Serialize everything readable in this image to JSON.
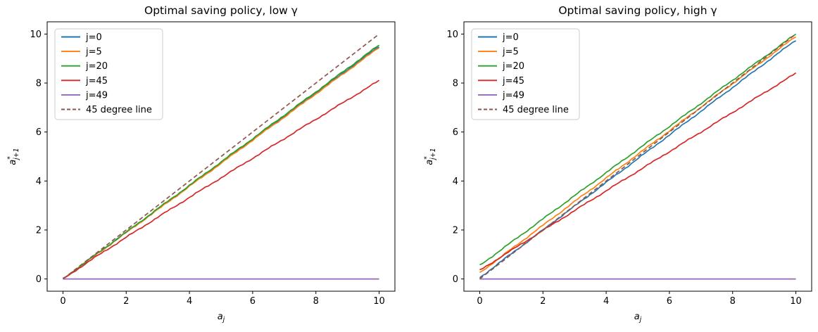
{
  "figure": {
    "background": "#ffffff",
    "axes_color": "#000000",
    "legend_border_color": "#cccccc",
    "legend_background": "#ffffff"
  },
  "chart_data": [
    {
      "type": "line",
      "title": "Optimal saving policy, low γ",
      "xlabel": {
        "base": "a",
        "sub": "j"
      },
      "ylabel": {
        "base": "a",
        "sup": "*",
        "sub": "j+1"
      },
      "xlim": [
        -0.5,
        10.5
      ],
      "ylim": [
        -0.5,
        10.5
      ],
      "xticks": [
        0,
        2,
        4,
        6,
        8,
        10
      ],
      "yticks": [
        0,
        2,
        4,
        6,
        8,
        10
      ],
      "grid": false,
      "legend_position": "upper-left",
      "x": [
        0,
        1,
        2,
        3,
        4,
        5,
        6,
        7,
        8,
        9,
        10
      ],
      "series": [
        {
          "name": "j=0",
          "color": "#1f77b4",
          "style": "solid",
          "jitter": true,
          "values": [
            0,
            0.95,
            1.9,
            2.85,
            3.8,
            4.75,
            5.7,
            6.65,
            7.6,
            8.55,
            9.5
          ]
        },
        {
          "name": "j=5",
          "color": "#ff7f0e",
          "style": "solid",
          "jitter": true,
          "values": [
            0,
            0.94,
            1.89,
            2.83,
            3.78,
            4.72,
            5.67,
            6.61,
            7.56,
            8.5,
            9.45
          ]
        },
        {
          "name": "j=20",
          "color": "#2ca02c",
          "style": "solid",
          "jitter": true,
          "values": [
            0,
            0.96,
            1.91,
            2.87,
            3.82,
            4.78,
            5.73,
            6.69,
            7.64,
            8.6,
            9.55
          ]
        },
        {
          "name": "j=45",
          "color": "#d62728",
          "style": "solid",
          "jitter": true,
          "values": [
            0,
            0.87,
            1.7,
            2.52,
            3.33,
            4.13,
            4.93,
            5.73,
            6.52,
            7.31,
            8.1
          ]
        },
        {
          "name": "j=49",
          "color": "#9467bd",
          "style": "solid",
          "jitter": false,
          "values": [
            0,
            0,
            0,
            0,
            0,
            0,
            0,
            0,
            0,
            0,
            0
          ]
        },
        {
          "name": "45 degree line",
          "color": "#8c564b",
          "style": "dashed",
          "jitter": false,
          "values": [
            0,
            1,
            2,
            3,
            4,
            5,
            6,
            7,
            8,
            9,
            10
          ]
        }
      ]
    },
    {
      "type": "line",
      "title": "Optimal saving policy, high γ",
      "xlabel": {
        "base": "a",
        "sub": "j"
      },
      "ylabel": {
        "base": "a",
        "sup": "*",
        "sub": "j+1"
      },
      "xlim": [
        -0.5,
        10.5
      ],
      "ylim": [
        -0.5,
        10.5
      ],
      "xticks": [
        0,
        2,
        4,
        6,
        8,
        10
      ],
      "yticks": [
        0,
        2,
        4,
        6,
        8,
        10
      ],
      "grid": false,
      "legend_position": "upper-left",
      "x": [
        0,
        1,
        2,
        3,
        4,
        5,
        6,
        7,
        8,
        9,
        10
      ],
      "series": [
        {
          "name": "j=0",
          "color": "#1f77b4",
          "style": "solid",
          "jitter": true,
          "values": [
            0.05,
            1.03,
            2.0,
            2.97,
            3.94,
            4.91,
            5.88,
            6.85,
            7.82,
            8.79,
            9.75
          ]
        },
        {
          "name": "j=5",
          "color": "#ff7f0e",
          "style": "solid",
          "jitter": true,
          "values": [
            0.25,
            1.22,
            2.19,
            3.16,
            4.12,
            5.09,
            6.05,
            7.02,
            7.98,
            8.94,
            9.9
          ]
        },
        {
          "name": "j=20",
          "color": "#2ca02c",
          "style": "solid",
          "jitter": true,
          "values": [
            0.55,
            1.5,
            2.45,
            3.4,
            4.34,
            5.29,
            6.23,
            7.17,
            8.12,
            9.06,
            10.0
          ]
        },
        {
          "name": "j=45",
          "color": "#d62728",
          "style": "solid",
          "jitter": true,
          "values": [
            0.35,
            1.17,
            1.98,
            2.79,
            3.6,
            4.4,
            5.2,
            6.0,
            6.8,
            7.6,
            8.4
          ]
        },
        {
          "name": "j=49",
          "color": "#9467bd",
          "style": "solid",
          "jitter": false,
          "values": [
            0,
            0,
            0,
            0,
            0,
            0,
            0,
            0,
            0,
            0,
            0
          ]
        },
        {
          "name": "45 degree line",
          "color": "#8c564b",
          "style": "dashed",
          "jitter": false,
          "values": [
            0,
            1,
            2,
            3,
            4,
            5,
            6,
            7,
            8,
            9,
            10
          ]
        }
      ]
    }
  ]
}
